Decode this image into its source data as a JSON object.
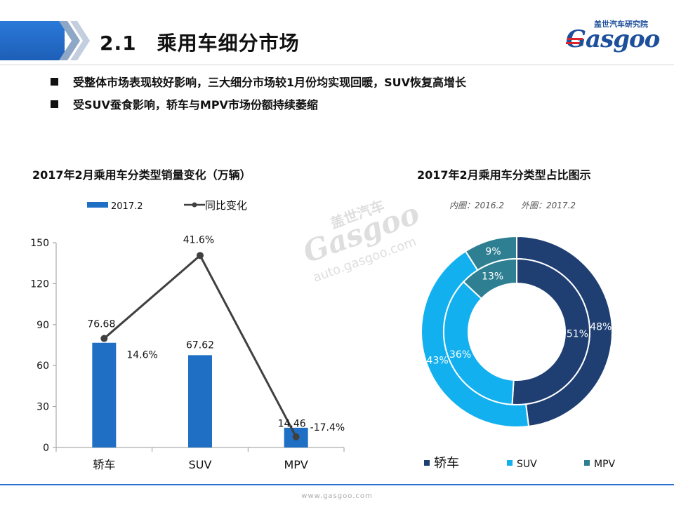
{
  "header": {
    "title": "2.1　乘用车细分市场",
    "logo_cn": "盖世汽车研究院",
    "logo_en": "Gasgoo"
  },
  "bullets": [
    "受整体市场表现较好影响，三大细分市场较1月份均实现回暖，SUV恢复高增长",
    "受SUV蚕食影响，轿车与MPV市场份额持续萎缩"
  ],
  "watermark": {
    "cn": "盖世汽车",
    "en": "Gasgoo",
    "url": "auto.gasgoo.com"
  },
  "footer": {
    "url": "www.gasgoo.com"
  },
  "colors": {
    "bar": "#1f6fc5",
    "line": "#404040",
    "sedan": "#1f3f73",
    "suv": "#13b0ef",
    "mpv": "#2e7f92",
    "header_blue": "#2a79d8",
    "logo_red": "#d6252b"
  },
  "chart_data": [
    {
      "type": "bar",
      "title": "2017年2月乘用车分类型销量变化（万辆）",
      "categories": [
        "轿车",
        "SUV",
        "MPV"
      ],
      "ylim": [
        0,
        150
      ],
      "yticks": [
        0,
        30,
        60,
        90,
        120,
        150
      ],
      "legend_position": "top-left",
      "series": [
        {
          "name": "2017.2",
          "type": "bar",
          "values": [
            76.68,
            67.62,
            14.46
          ],
          "value_labels": [
            "76.68",
            "67.62",
            "14.46"
          ]
        },
        {
          "name": "同比变化",
          "type": "line",
          "values": [
            14.6,
            41.6,
            -17.4
          ],
          "value_labels": [
            "14.6%",
            "41.6%",
            "-17.4%"
          ]
        }
      ]
    },
    {
      "type": "pie",
      "title": "2017年2月乘用车分类型占比图示",
      "subtitle": "内圈：2016.2　　外圈：2017.2",
      "categories": [
        "轿车",
        "SUV",
        "MPV"
      ],
      "legend_position": "bottom",
      "series": [
        {
          "name": "2016.2",
          "ring": "inner",
          "values": [
            51,
            36,
            13
          ],
          "value_labels": [
            "51%",
            "36%",
            "13%"
          ]
        },
        {
          "name": "2017.2",
          "ring": "outer",
          "values": [
            48,
            43,
            9
          ],
          "value_labels": [
            "48%",
            "43%",
            "9%"
          ]
        }
      ]
    }
  ]
}
